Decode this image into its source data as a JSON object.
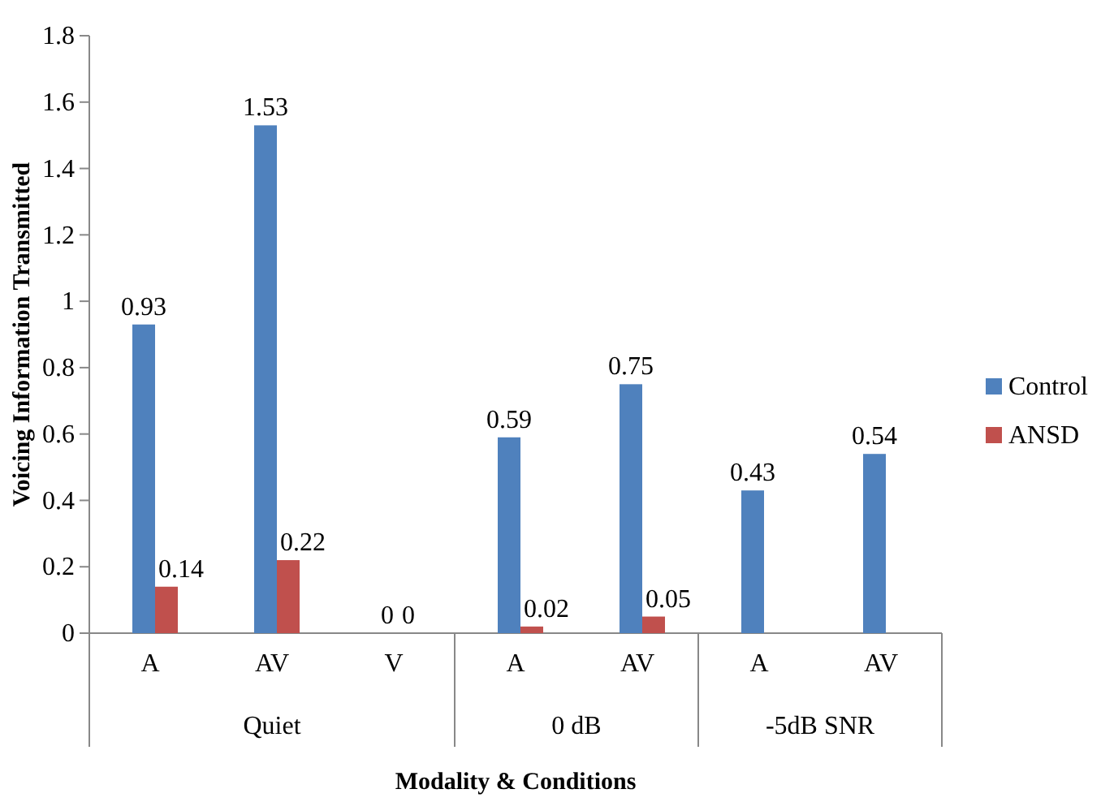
{
  "chart_data": {
    "type": "bar",
    "xlabel": "Modality & Conditions",
    "ylabel": "Voicing Information Transmitted",
    "categories": [
      "A",
      "AV",
      "V",
      "A",
      "AV",
      "A",
      "AV"
    ],
    "series": [
      {
        "name": "Control",
        "color": "#4f81bd",
        "values": [
          0.93,
          1.53,
          0,
          0.59,
          0.75,
          0.43,
          0.54
        ]
      },
      {
        "name": "ANSD",
        "color": "#c0504d",
        "values": [
          0.14,
          0.22,
          0,
          0.02,
          0.05,
          null,
          null
        ]
      }
    ],
    "annotations": [
      "Quiet",
      "0 dB",
      "-5dB SNR"
    ],
    "ylim": [
      0,
      1.8
    ],
    "yticks": [
      0,
      0.2,
      0.4,
      0.6,
      0.8,
      1,
      1.2,
      1.4,
      1.6,
      1.8
    ],
    "data_labels": true,
    "grid": false,
    "legend": "right"
  }
}
